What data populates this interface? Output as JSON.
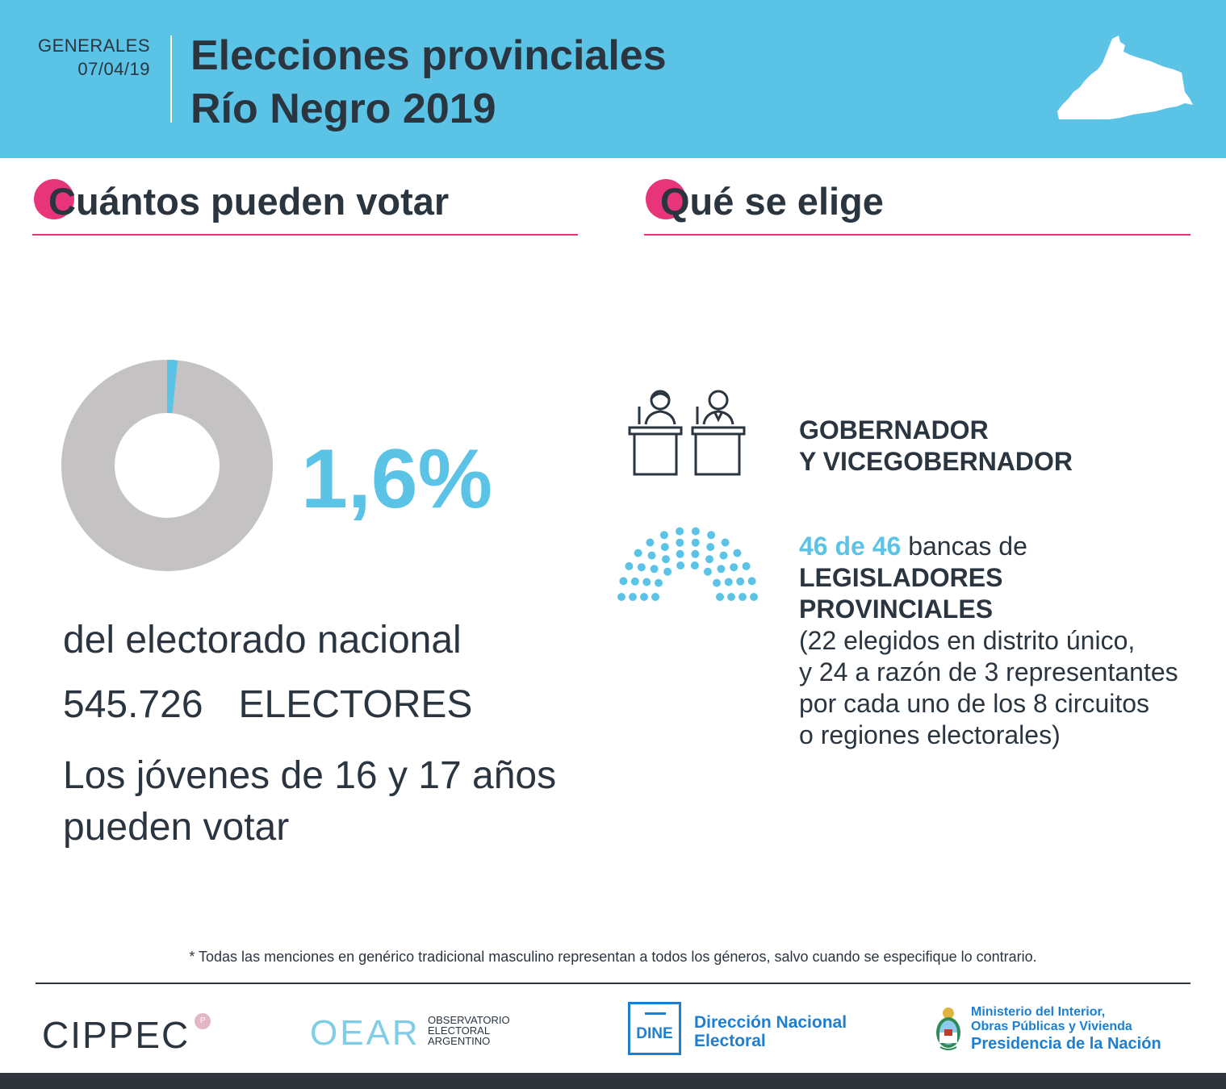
{
  "header": {
    "kind": "GENERALES",
    "date": "07/04/19",
    "title_line1": "Elecciones provinciales",
    "title_line2": "Río Negro 2019"
  },
  "left": {
    "section_title": "Cuántos pueden votar",
    "percent": "1,6%",
    "percent_value": 1.6,
    "electorate_label": "del electorado nacional",
    "electors_number": "545.726",
    "electors_label": "ELECTORES",
    "youth_line1": "Los jóvenes de 16 y 17 años",
    "youth_line2": "pueden votar"
  },
  "right": {
    "section_title": "Qué se elige",
    "governor_line1": "GOBERNADOR",
    "governor_line2": "Y VICEGOBERNADOR",
    "seats_count": "46 de 46",
    "seats_label": "bancas de",
    "legislators_line1": "LEGISLADORES",
    "legislators_line2": "PROVINCIALES",
    "detail_line1": "(22 elegidos en distrito único,",
    "detail_line2": "y 24 a razón de 3 representantes",
    "detail_line3": "por cada uno de los 8 circuitos",
    "detail_line4": "o regiones electorales)"
  },
  "footnote": "* Todas las menciones en genérico tradicional masculino representan a todos los géneros, salvo cuando se especifique lo contrario.",
  "logos": {
    "cippec": "CIPPEC",
    "oear": "OEAR",
    "oear_sub1": "OBSERVATORIO",
    "oear_sub2": "ELECTORAL",
    "oear_sub3": "ARGENTINO",
    "dine": "DINE",
    "dine_line1": "Dirección Nacional",
    "dine_line2": "Electoral",
    "min_line1": "Ministerio del Interior,",
    "min_line2": "Obras Públicas y Vivienda",
    "min_line3": "Presidencia de la Nación"
  },
  "colors": {
    "accent_blue": "#5bc3e6",
    "accent_pink": "#e8357a",
    "text_dark": "#2a3540",
    "donut_gray": "#c4c2c2"
  }
}
